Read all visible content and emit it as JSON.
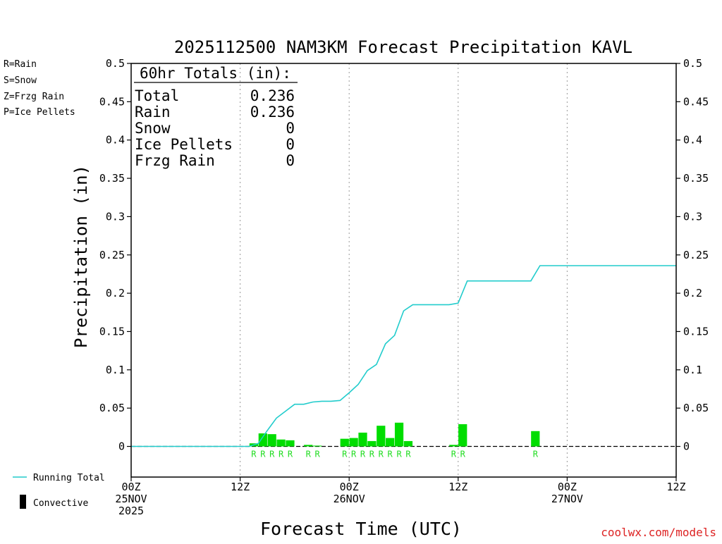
{
  "chart_data": {
    "type": "bar",
    "title": "2025112500 NAM3KM Forecast Precipitation KAVL",
    "xlabel": "Forecast Time (UTC)",
    "ylabel": "Precipitation (in)",
    "credit": "coolwx.com/models",
    "ylim": [
      -0.04,
      0.5
    ],
    "xlim": [
      0,
      60
    ],
    "y_ticks": [
      "0",
      "0.05",
      "0.1",
      "0.15",
      "0.2",
      "0.25",
      "0.3",
      "0.35",
      "0.4",
      "0.45",
      "0.5"
    ],
    "y_tick_values": [
      0,
      0.05,
      0.1,
      0.15,
      0.2,
      0.25,
      0.3,
      0.35,
      0.4,
      0.45,
      0.5
    ],
    "x_ticks": [
      {
        "hour": 0,
        "lines": [
          "00Z",
          "25NOV",
          "2025"
        ]
      },
      {
        "hour": 12,
        "lines": [
          "12Z"
        ]
      },
      {
        "hour": 24,
        "lines": [
          "00Z",
          "26NOV"
        ]
      },
      {
        "hour": 36,
        "lines": [
          "12Z"
        ]
      },
      {
        "hour": 48,
        "lines": [
          "00Z",
          "27NOV"
        ]
      },
      {
        "hour": 60,
        "lines": [
          "12Z"
        ]
      }
    ],
    "ptype_legend": [
      {
        "text": "R=Rain",
        "color": "#22dd22"
      },
      {
        "text": "S=Snow",
        "color": "#3355ee"
      },
      {
        "text": "Z=Frzg Rain",
        "color": "#ee8833"
      },
      {
        "text": "P=Ice Pellets",
        "color": "#ee1188"
      }
    ],
    "totals": {
      "heading": "60hr Totals (in):",
      "rows": [
        {
          "label": "Total",
          "value": "0.236"
        },
        {
          "label": "Rain",
          "value": "0.236"
        },
        {
          "label": "Snow",
          "value": "0"
        },
        {
          "label": "Ice Pellets",
          "value": "0"
        },
        {
          "label": "Frzg Rain",
          "value": "0"
        }
      ]
    },
    "series_legend": {
      "running_total": "Running Total",
      "convective": "Convective"
    },
    "colors": {
      "bar": "#00dd00",
      "running_total": "#22cccc",
      "rain_marker": "#22dd22"
    },
    "bars": [
      {
        "hour": 13.5,
        "value": 0.004,
        "ptype": "R"
      },
      {
        "hour": 14.5,
        "value": 0.017,
        "ptype": "R"
      },
      {
        "hour": 15.5,
        "value": 0.016,
        "ptype": "R"
      },
      {
        "hour": 16.5,
        "value": 0.009,
        "ptype": "R"
      },
      {
        "hour": 17.5,
        "value": 0.008,
        "ptype": "R"
      },
      {
        "hour": 19.5,
        "value": 0.002,
        "ptype": "R"
      },
      {
        "hour": 20.5,
        "value": 0.001,
        "ptype": "R"
      },
      {
        "hour": 23.5,
        "value": 0.01,
        "ptype": "R"
      },
      {
        "hour": 24.5,
        "value": 0.011,
        "ptype": "R"
      },
      {
        "hour": 25.5,
        "value": 0.018,
        "ptype": "R"
      },
      {
        "hour": 26.5,
        "value": 0.007,
        "ptype": "R"
      },
      {
        "hour": 27.5,
        "value": 0.027,
        "ptype": "R"
      },
      {
        "hour": 28.5,
        "value": 0.011,
        "ptype": "R"
      },
      {
        "hour": 29.5,
        "value": 0.031,
        "ptype": "R"
      },
      {
        "hour": 30.5,
        "value": 0.007,
        "ptype": "R"
      },
      {
        "hour": 35.5,
        "value": 0.002,
        "ptype": "R"
      },
      {
        "hour": 36.5,
        "value": 0.029,
        "ptype": "R"
      },
      {
        "hour": 44.5,
        "value": 0.02,
        "ptype": "R"
      }
    ],
    "running_total": [
      [
        0,
        0
      ],
      [
        13,
        0
      ],
      [
        14,
        0.004
      ],
      [
        15,
        0.021
      ],
      [
        16,
        0.037
      ],
      [
        17,
        0.046
      ],
      [
        18,
        0.055
      ],
      [
        19,
        0.055
      ],
      [
        20,
        0.058
      ],
      [
        21,
        0.059
      ],
      [
        22,
        0.059
      ],
      [
        23,
        0.06
      ],
      [
        24,
        0.07
      ],
      [
        25,
        0.081
      ],
      [
        26,
        0.099
      ],
      [
        27,
        0.107
      ],
      [
        28,
        0.134
      ],
      [
        29,
        0.145
      ],
      [
        30,
        0.177
      ],
      [
        31,
        0.185
      ],
      [
        32,
        0.185
      ],
      [
        33,
        0.185
      ],
      [
        34,
        0.185
      ],
      [
        35,
        0.185
      ],
      [
        36,
        0.187
      ],
      [
        37,
        0.216
      ],
      [
        38,
        0.216
      ],
      [
        39,
        0.216
      ],
      [
        40,
        0.216
      ],
      [
        41,
        0.216
      ],
      [
        42,
        0.216
      ],
      [
        43,
        0.216
      ],
      [
        44,
        0.216
      ],
      [
        45,
        0.236
      ],
      [
        60,
        0.236
      ]
    ]
  }
}
